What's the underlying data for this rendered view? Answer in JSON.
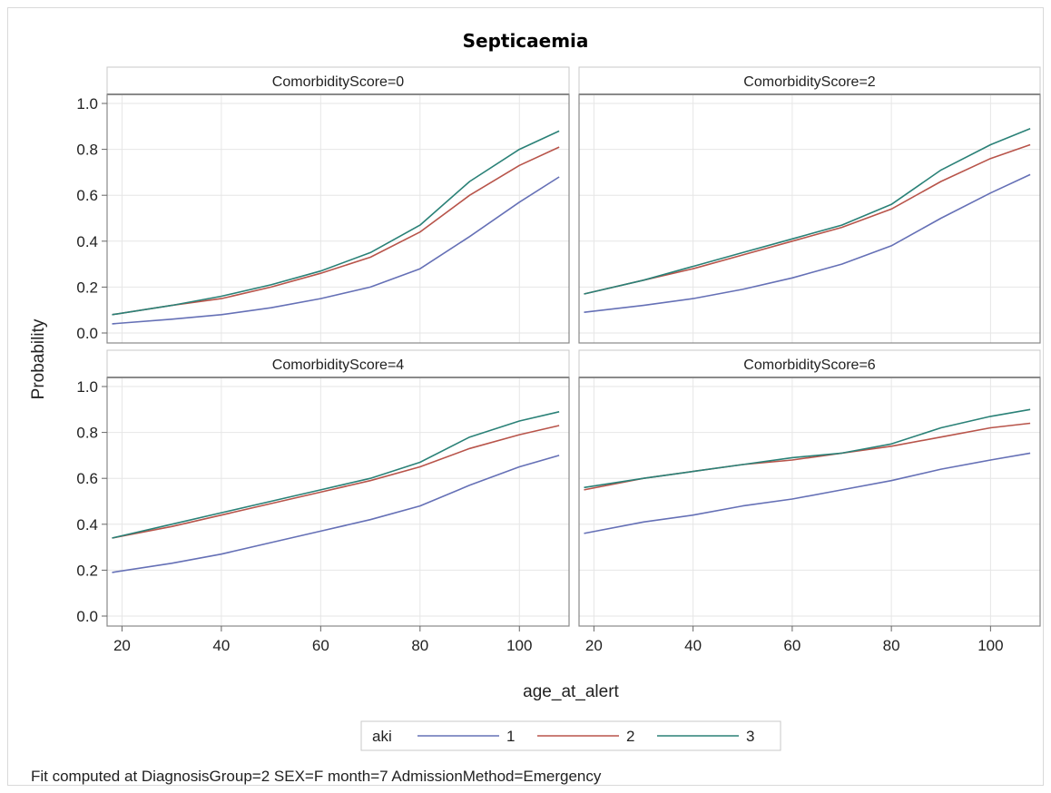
{
  "chart_data": {
    "type": "line",
    "title": "Septicaemia",
    "xlabel": "age_at_alert",
    "ylabel": "Probability",
    "xlim": [
      17,
      110
    ],
    "ylim": [
      0.0,
      1.0
    ],
    "xticks": [
      20,
      40,
      60,
      80,
      100
    ],
    "yticks": [
      0.0,
      0.2,
      0.4,
      0.6,
      0.8,
      1.0
    ],
    "grid": true,
    "legend": {
      "title": "aki",
      "position": "bottom",
      "entries": [
        "1",
        "2",
        "3"
      ]
    },
    "series_colors": {
      "1": "#6570b6",
      "2": "#b8544a",
      "3": "#2a8177"
    },
    "panels": [
      {
        "label": "ComorbidityScore=0",
        "x": [
          18,
          30,
          40,
          50,
          60,
          70,
          80,
          90,
          100,
          108
        ],
        "series": [
          {
            "name": "1",
            "values": [
              0.04,
              0.06,
              0.08,
              0.11,
              0.15,
              0.2,
              0.28,
              0.42,
              0.57,
              0.68
            ]
          },
          {
            "name": "2",
            "values": [
              0.08,
              0.12,
              0.15,
              0.2,
              0.26,
              0.33,
              0.44,
              0.6,
              0.73,
              0.81
            ]
          },
          {
            "name": "3",
            "values": [
              0.08,
              0.12,
              0.16,
              0.21,
              0.27,
              0.35,
              0.47,
              0.66,
              0.8,
              0.88
            ]
          }
        ]
      },
      {
        "label": "ComorbidityScore=2",
        "x": [
          18,
          30,
          40,
          50,
          60,
          70,
          80,
          90,
          100,
          108
        ],
        "series": [
          {
            "name": "1",
            "values": [
              0.09,
              0.12,
              0.15,
              0.19,
              0.24,
              0.3,
              0.38,
              0.5,
              0.61,
              0.69
            ]
          },
          {
            "name": "2",
            "values": [
              0.17,
              0.23,
              0.28,
              0.34,
              0.4,
              0.46,
              0.54,
              0.66,
              0.76,
              0.82
            ]
          },
          {
            "name": "3",
            "values": [
              0.17,
              0.23,
              0.29,
              0.35,
              0.41,
              0.47,
              0.56,
              0.71,
              0.82,
              0.89
            ]
          }
        ]
      },
      {
        "label": "ComorbidityScore=4",
        "x": [
          18,
          30,
          40,
          50,
          60,
          70,
          80,
          90,
          100,
          108
        ],
        "series": [
          {
            "name": "1",
            "values": [
              0.19,
              0.23,
              0.27,
              0.32,
              0.37,
              0.42,
              0.48,
              0.57,
              0.65,
              0.7
            ]
          },
          {
            "name": "2",
            "values": [
              0.34,
              0.39,
              0.44,
              0.49,
              0.54,
              0.59,
              0.65,
              0.73,
              0.79,
              0.83
            ]
          },
          {
            "name": "3",
            "values": [
              0.34,
              0.4,
              0.45,
              0.5,
              0.55,
              0.6,
              0.67,
              0.78,
              0.85,
              0.89
            ]
          }
        ]
      },
      {
        "label": "ComorbidityScore=6",
        "x": [
          18,
          30,
          40,
          50,
          60,
          70,
          80,
          90,
          100,
          108
        ],
        "series": [
          {
            "name": "1",
            "values": [
              0.36,
              0.41,
              0.44,
              0.48,
              0.51,
              0.55,
              0.59,
              0.64,
              0.68,
              0.71
            ]
          },
          {
            "name": "2",
            "values": [
              0.55,
              0.6,
              0.63,
              0.66,
              0.68,
              0.71,
              0.74,
              0.78,
              0.82,
              0.84
            ]
          },
          {
            "name": "3",
            "values": [
              0.56,
              0.6,
              0.63,
              0.66,
              0.69,
              0.71,
              0.75,
              0.82,
              0.87,
              0.9
            ]
          }
        ]
      }
    ],
    "footnote": "Fit computed at DiagnosisGroup=2 SEX=F month=7 AdmissionMethod=Emergency"
  }
}
